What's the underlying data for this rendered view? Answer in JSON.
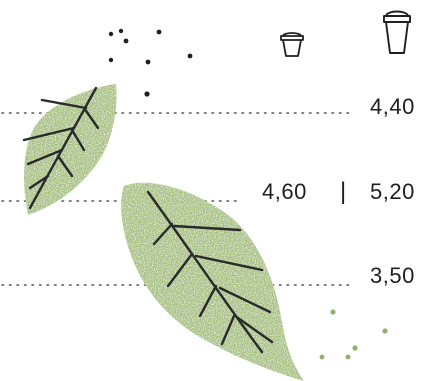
{
  "menu": {
    "header": {
      "small_cup_icon": "small-cup-icon",
      "large_cup_icon": "large-cup-icon"
    },
    "rows": [
      {
        "price": "4,40"
      },
      {
        "price_small": "4,60",
        "separator": "|",
        "price_large": "5,20"
      },
      {
        "price": "3,50"
      }
    ]
  },
  "colors": {
    "leaf_green": "#a4bf7c",
    "ink": "#1f1f1f",
    "dotted_leader": "#555555",
    "accent_dots": "#8fb36b"
  },
  "decorations": {
    "leaf_icon": "leaf-icon",
    "coffee_bean_dots": "bean-dots"
  }
}
